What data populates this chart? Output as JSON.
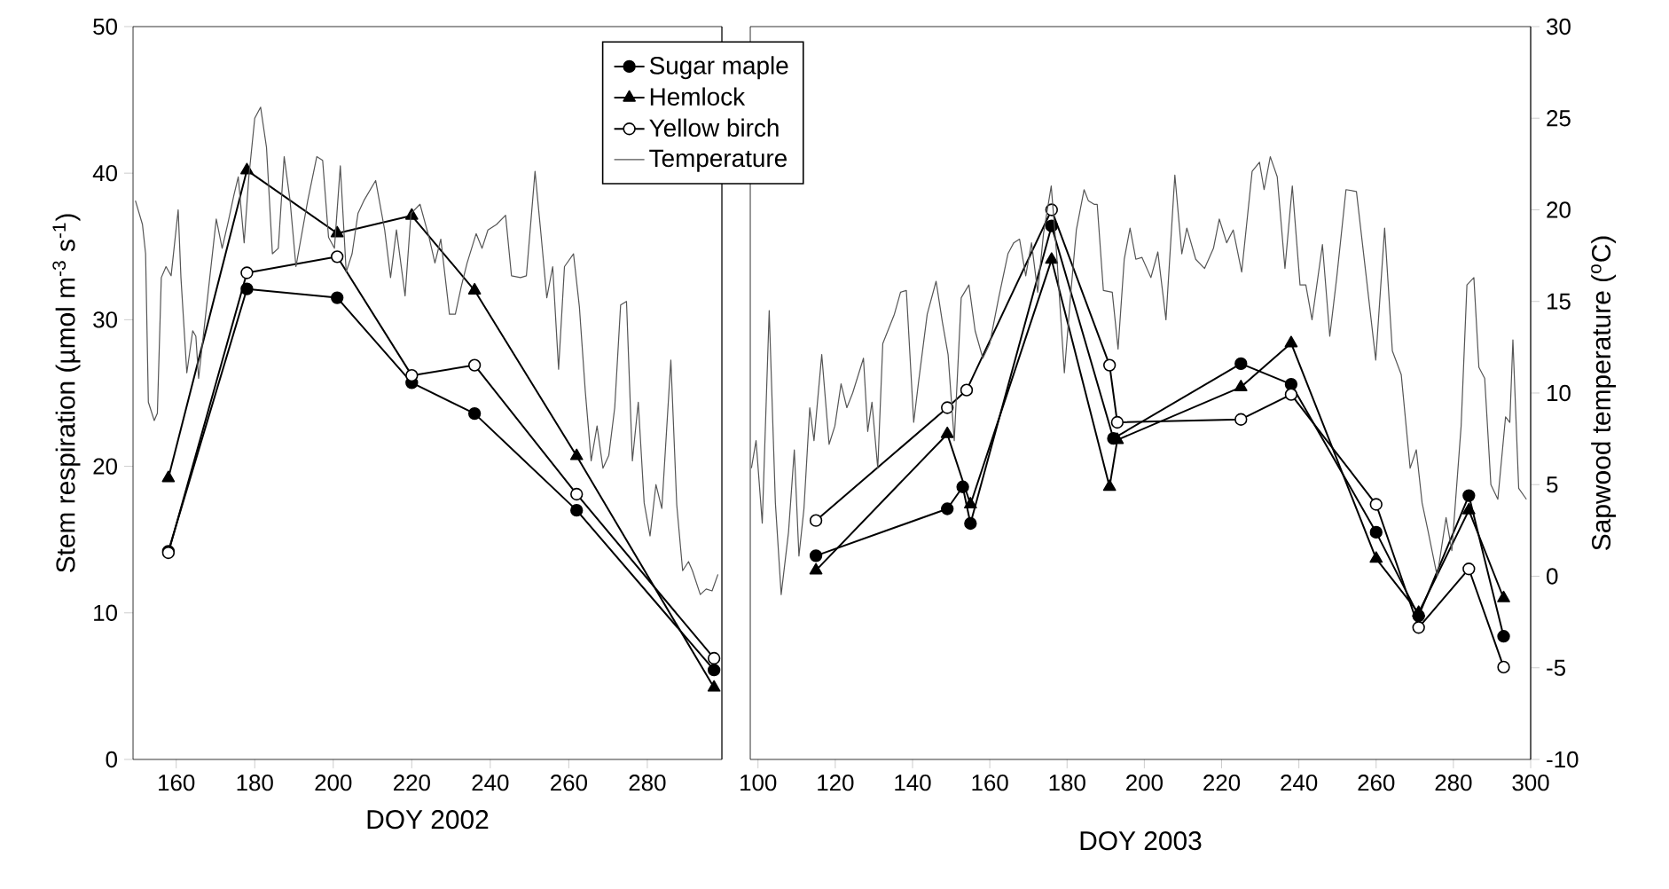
{
  "chart_data": [
    {
      "type": "line",
      "xlabel": "DOY 2002",
      "ylabel": "Stem respiration (µmol m$^{-3}$ s$^{-1}$)",
      "xlim": [
        149,
        299
      ],
      "xticks": [
        160,
        180,
        200,
        220,
        240,
        260,
        280
      ],
      "ylim": [
        0,
        50
      ],
      "yticks": [
        0,
        10,
        20,
        30,
        40,
        50
      ],
      "y2lim": [
        -10,
        30
      ],
      "series": [
        {
          "color": "#000000",
          "marker": "circle",
          "x": [
            158,
            178,
            201,
            220,
            236,
            262,
            297
          ],
          "values": [
            14.2,
            32.1,
            31.5,
            25.7,
            23.6,
            17.0,
            6.1
          ]
        },
        {
          "color": "#000000",
          "marker": "triangle",
          "x": [
            158,
            178,
            201,
            220,
            236,
            262,
            297
          ],
          "values": [
            19.2,
            40.2,
            35.9,
            37.1,
            32.0,
            20.7,
            4.9
          ]
        },
        {
          "color": "#ffffff",
          "marker": "circle",
          "x": [
            158,
            178,
            201,
            220,
            236,
            262,
            297
          ],
          "values": [
            14.1,
            33.2,
            34.3,
            26.2,
            26.9,
            18.1,
            6.9
          ]
        },
        {
          "color": "#555555",
          "marker": "none",
          "axis": "y2",
          "x": [
            149.6,
            151.4,
            152.2,
            152.9,
            154.4,
            155.2,
            156.2,
            157.4,
            158.7,
            160.5,
            161.2,
            162.7,
            164.2,
            165.0,
            165.7,
            167.2,
            168.7,
            170.2,
            171.7,
            173.2,
            174.7,
            175.8,
            177.3,
            178.5,
            180.0,
            181.5,
            183.0,
            184.5,
            186.0,
            187.5,
            189.0,
            190.5,
            193.5,
            195.8,
            197.3,
            198.8,
            200.3,
            201.8,
            203.3,
            204.8,
            206.3,
            207.8,
            210.8,
            213.1,
            214.6,
            216.1,
            218.3,
            219.8,
            222.1,
            224.4,
            225.9,
            227.4,
            229.6,
            231.1,
            232.6,
            234.1,
            236.4,
            237.9,
            239.4,
            241.6,
            243.9,
            245.4,
            247.7,
            249.2,
            251.4,
            252.9,
            254.4,
            255.9,
            257.4,
            258.9,
            261.2,
            262.7,
            264.2,
            265.7,
            267.2,
            268.7,
            270.2,
            271.7,
            273.2,
            274.7,
            276.2,
            277.7,
            279.2,
            280.7,
            282.2,
            283.7,
            286.0,
            287.5,
            289.0,
            290.5,
            291.5,
            293.5,
            295.0,
            296.5,
            298.0
          ],
          "values": [
            20.5,
            19.2,
            17.6,
            9.5,
            8.5,
            8.9,
            16.3,
            16.9,
            16.4,
            20.0,
            16.3,
            11.1,
            13.4,
            13.1,
            10.8,
            13.7,
            16.6,
            19.5,
            17.9,
            19.3,
            20.8,
            21.8,
            18.2,
            21.8,
            25.0,
            25.6,
            23.4,
            17.6,
            17.9,
            22.9,
            20.5,
            16.9,
            20.5,
            22.9,
            22.7,
            18.5,
            17.9,
            22.4,
            16.6,
            17.6,
            19.8,
            20.5,
            21.6,
            18.9,
            16.3,
            18.9,
            15.3,
            19.8,
            20.3,
            18.5,
            17.1,
            18.4,
            14.3,
            14.3,
            15.8,
            17.1,
            18.7,
            17.9,
            18.9,
            19.2,
            19.7,
            16.4,
            16.3,
            16.4,
            22.1,
            18.7,
            15.2,
            16.9,
            11.3,
            16.9,
            17.6,
            14.7,
            10.1,
            6.3,
            8.2,
            5.9,
            6.6,
            9.2,
            14.8,
            15.0,
            6.3,
            9.5,
            4.0,
            2.2,
            5.0,
            3.7,
            11.8,
            3.9,
            0.3,
            0.8,
            0.3,
            -1.0,
            -0.7,
            -0.8,
            0.1
          ]
        }
      ]
    },
    {
      "type": "line",
      "xlabel": "DOY 2003",
      "y2label": "Sapwood temperature ($^{o}$C)",
      "legend": "top left",
      "xlim": [
        98,
        300
      ],
      "xticks": [
        100,
        120,
        140,
        160,
        180,
        200,
        220,
        240,
        260,
        280,
        300
      ],
      "ylim": [
        0,
        50
      ],
      "y2lim": [
        -10,
        30
      ],
      "y2ticks": [
        -10,
        -5,
        0,
        5,
        10,
        15,
        20,
        25,
        30
      ],
      "series": [
        {
          "name": "Sugar maple",
          "color": "#000000",
          "marker": "circle",
          "x": [
            115,
            149,
            153,
            155,
            176,
            192,
            225,
            238,
            260,
            271,
            284,
            293
          ],
          "values": [
            13.9,
            17.1,
            18.6,
            16.1,
            36.4,
            21.9,
            27.0,
            25.6,
            15.5,
            9.8,
            18.0,
            8.4
          ]
        },
        {
          "name": "Hemlock",
          "color": "#000000",
          "marker": "triangle",
          "x": [
            115,
            149,
            155,
            176,
            191,
            193,
            225,
            238,
            260,
            271,
            284,
            293
          ],
          "values": [
            12.9,
            22.2,
            17.4,
            34.1,
            18.6,
            21.8,
            25.4,
            28.4,
            13.7,
            10.0,
            17.0,
            11.0
          ]
        },
        {
          "name": "Yellow birch",
          "color": "#ffffff",
          "marker": "circle",
          "x": [
            115,
            149,
            154,
            176,
            191,
            193,
            225,
            238,
            260,
            271,
            284,
            293
          ],
          "values": [
            16.3,
            24.0,
            25.2,
            37.5,
            26.9,
            23.0,
            23.2,
            24.9,
            17.4,
            9.0,
            13.0,
            6.3
          ]
        },
        {
          "name": "Temperature",
          "color": "#555555",
          "marker": "none",
          "axis": "y2",
          "x": [
            98.3,
            99.5,
            101.1,
            102.9,
            104.5,
            106.0,
            107.9,
            109.4,
            110.6,
            111.9,
            113.4,
            114.5,
            116.5,
            118.4,
            119.9,
            121.5,
            123.0,
            124.5,
            127.3,
            128.4,
            129.5,
            131.0,
            132.3,
            133.8,
            135.3,
            136.9,
            138.4,
            140.3,
            141.5,
            143.8,
            146.1,
            147.7,
            149.2,
            150.8,
            152.6,
            154.6,
            156.2,
            158.2,
            160.0,
            162.3,
            164.7,
            166.2,
            167.7,
            169.3,
            170.8,
            172.4,
            173.9,
            175.9,
            177.3,
            179.3,
            180.9,
            182.4,
            184.4,
            185.5,
            187.0,
            187.8,
            189.4,
            191.7,
            193.2,
            194.8,
            196.3,
            197.8,
            199.4,
            201.7,
            203.5,
            205.6,
            207.9,
            209.7,
            211.0,
            213.3,
            215.6,
            217.9,
            219.4,
            221.3,
            223.0,
            225.2,
            227.9,
            229.8,
            231.0,
            232.6,
            234.4,
            236.4,
            238.3,
            240.3,
            241.8,
            243.4,
            246.1,
            248.0,
            249.8,
            252.2,
            254.9,
            257.3,
            259.9,
            262.2,
            264.2,
            266.5,
            268.8,
            270.4,
            271.9,
            273.5,
            275.8,
            278.1,
            279.6,
            282.0,
            283.5,
            285.3,
            286.6,
            288.1,
            289.7,
            291.5,
            293.5,
            294.6,
            295.4,
            296.9,
            298.9
          ],
          "values": [
            5.9,
            7.4,
            2.9,
            14.5,
            4.0,
            -1.0,
            2.4,
            6.9,
            1.1,
            3.7,
            9.2,
            7.4,
            12.1,
            7.2,
            8.2,
            10.5,
            9.2,
            10.0,
            11.9,
            7.9,
            9.5,
            5.9,
            12.7,
            13.5,
            14.3,
            15.5,
            15.6,
            8.4,
            10.5,
            14.3,
            16.1,
            13.9,
            12.1,
            7.4,
            15.2,
            15.9,
            13.4,
            11.9,
            12.7,
            15.2,
            17.6,
            18.2,
            18.4,
            16.4,
            18.2,
            15.5,
            18.7,
            21.3,
            17.6,
            11.1,
            15.3,
            18.9,
            21.1,
            20.5,
            20.3,
            20.3,
            15.6,
            15.5,
            12.4,
            17.3,
            19.0,
            17.3,
            17.4,
            16.3,
            17.7,
            14.0,
            21.9,
            17.6,
            19.0,
            17.3,
            16.8,
            17.9,
            19.5,
            18.2,
            18.9,
            16.6,
            22.1,
            22.6,
            21.1,
            22.9,
            21.8,
            16.8,
            21.3,
            15.9,
            15.9,
            14.0,
            18.1,
            13.1,
            16.3,
            21.1,
            21.0,
            16.6,
            11.8,
            19.0,
            12.3,
            11.0,
            5.9,
            6.9,
            4.0,
            2.4,
            0.0,
            3.2,
            1.4,
            8.2,
            15.9,
            16.3,
            11.4,
            10.8,
            5.0,
            4.2,
            8.7,
            8.4,
            12.9,
            4.8,
            4.2
          ]
        }
      ]
    }
  ]
}
